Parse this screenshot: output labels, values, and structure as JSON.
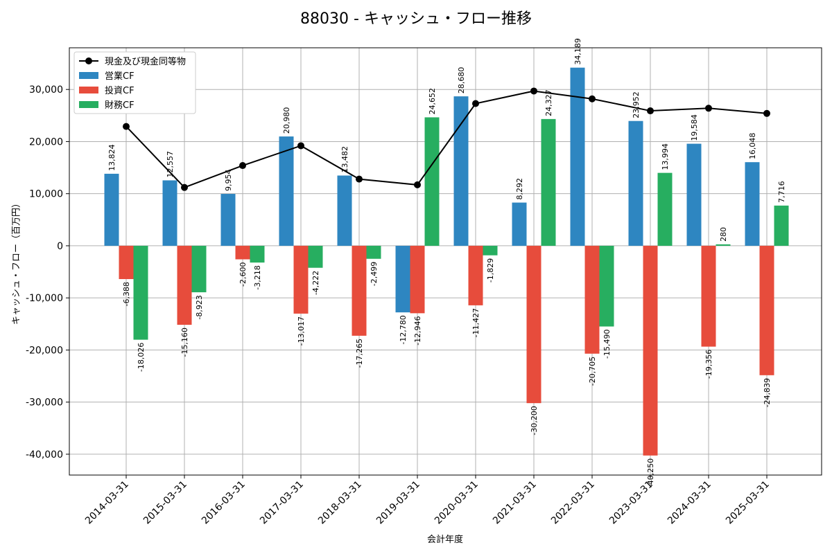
{
  "chart_data": {
    "type": "bar",
    "title": "88030 - キャッシュ・フロー推移",
    "xlabel": "会計年度",
    "ylabel": "キャッシュ・フロー（百万円）",
    "ylim": [
      -44000,
      38000
    ],
    "yticks": [
      -40000,
      -30000,
      -20000,
      -10000,
      0,
      10000,
      20000,
      30000
    ],
    "ytick_labels": [
      "-40,000",
      "-30,000",
      "-20,000",
      "-10,000",
      "0",
      "10,000",
      "20,000",
      "30,000"
    ],
    "grid": true,
    "legend_position": "top-left",
    "categories": [
      "2014-03-31",
      "2015-03-31",
      "2016-03-31",
      "2017-03-31",
      "2018-03-31",
      "2019-03-31",
      "2020-03-31",
      "2021-03-31",
      "2022-03-31",
      "2023-03-31",
      "2024-03-31",
      "2025-03-31"
    ],
    "series": [
      {
        "name": "営業CF",
        "kind": "bar",
        "color": "#2e86c1",
        "values": [
          13824,
          12557,
          9954,
          20980,
          13482,
          -12780,
          28680,
          8292,
          34189,
          23952,
          19584,
          16048
        ],
        "labels": [
          "13,824",
          "12,557",
          "9,954",
          "20,980",
          "13,482",
          "-12,780",
          "28,680",
          "8,292",
          "34,189",
          "23,952",
          "19,584",
          "16,048"
        ]
      },
      {
        "name": "投資CF",
        "kind": "bar",
        "color": "#e74c3c",
        "values": [
          -6388,
          -15160,
          -2600,
          -13017,
          -17265,
          -12946,
          -11427,
          -30200,
          -20705,
          -40250,
          -19356,
          -24839
        ],
        "labels": [
          "-6,388",
          "-15,160",
          "-2,600",
          "-13,017",
          "-17,265",
          "-12,946",
          "-11,427",
          "-30,200",
          "-20,705",
          "-40,250",
          "-19,356",
          "-24,839"
        ]
      },
      {
        "name": "財務CF",
        "kind": "bar",
        "color": "#27ae60",
        "values": [
          -18026,
          -8923,
          -3218,
          -4222,
          -2499,
          24652,
          -1829,
          24327,
          -15490,
          13994,
          280,
          7716
        ],
        "labels": [
          "-18,026",
          "-8,923",
          "-3,218",
          "-4,222",
          "-2,499",
          "24,652",
          "-1,829",
          "24,327",
          "-15,490",
          "13,994",
          "280",
          "7,716"
        ]
      },
      {
        "name": "現金及び現金同等物",
        "kind": "line",
        "color": "#000000",
        "values": [
          22900,
          11200,
          15400,
          19200,
          12800,
          11700,
          27300,
          29700,
          28200,
          25900,
          26400,
          25400
        ]
      }
    ]
  }
}
